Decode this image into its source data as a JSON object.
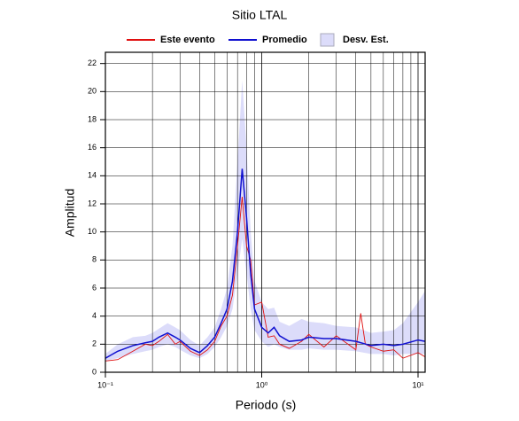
{
  "chart_data": {
    "type": "line",
    "title": "Sitio LTAL",
    "xlabel": "Periodo (s)",
    "ylabel": "Amplitud",
    "xscale": "log",
    "grid": true,
    "legend": "top",
    "xlim": [
      0.1,
      11.1
    ],
    "ylim": [
      0,
      22.8
    ],
    "xticks": [
      {
        "value": 0.1,
        "label": "10⁻¹"
      },
      {
        "value": 1,
        "label": "10⁰"
      },
      {
        "value": 10,
        "label": "10¹"
      }
    ],
    "xminorticks": [
      0.2,
      0.3,
      0.4,
      0.5,
      0.6,
      0.7,
      0.8,
      0.9,
      2,
      3,
      4,
      5,
      6,
      7,
      8,
      9
    ],
    "yticks": [
      0,
      2,
      4,
      6,
      8,
      10,
      12,
      14,
      16,
      18,
      20,
      22
    ],
    "x": [
      0.1,
      0.12,
      0.15,
      0.18,
      0.2,
      0.22,
      0.25,
      0.28,
      0.3,
      0.35,
      0.4,
      0.45,
      0.5,
      0.55,
      0.6,
      0.65,
      0.7,
      0.75,
      0.8,
      0.85,
      0.9,
      1.0,
      1.1,
      1.2,
      1.3,
      1.5,
      1.8,
      2.0,
      2.5,
      3.0,
      4.0,
      5,
      6,
      7,
      8,
      10,
      11.1
    ],
    "band": {
      "name": "Desv. Est.",
      "color": "#dcdcfa",
      "lower": [
        0.8,
        1.0,
        1.3,
        1.5,
        1.6,
        1.8,
        2.0,
        1.8,
        1.6,
        1.2,
        1.0,
        1.3,
        1.8,
        2.5,
        3.3,
        4.5,
        7,
        9.5,
        7,
        4.5,
        3.0,
        2.2,
        1.8,
        2.0,
        1.8,
        1.6,
        1.6,
        1.7,
        1.6,
        1.6,
        1.5,
        1.3,
        1.3,
        1.2,
        1.3,
        1.3,
        1.3
      ],
      "upper": [
        1.3,
        2.0,
        2.5,
        2.6,
        2.8,
        3.1,
        3.5,
        3.2,
        3.0,
        2.3,
        1.9,
        2.5,
        3.2,
        4.5,
        6.0,
        9,
        15,
        20.8,
        16,
        10,
        6.5,
        5,
        4.5,
        4.6,
        3.6,
        3.3,
        3.8,
        3.6,
        3.5,
        3.3,
        3.2,
        2.8,
        2.9,
        3.0,
        3.5,
        5.0,
        5.8
      ]
    },
    "series": [
      {
        "name": "Este evento",
        "color": "#e01010",
        "x": [
          0.1,
          0.12,
          0.15,
          0.18,
          0.2,
          0.22,
          0.25,
          0.28,
          0.3,
          0.35,
          0.4,
          0.45,
          0.5,
          0.55,
          0.6,
          0.65,
          0.7,
          0.75,
          0.8,
          0.85,
          0.9,
          1.0,
          1.1,
          1.2,
          1.3,
          1.5,
          1.8,
          2.0,
          2.5,
          3.0,
          4.0,
          4.3,
          4.6,
          5,
          6,
          7,
          8,
          10,
          11.1
        ],
        "values": [
          0.8,
          0.9,
          1.5,
          2.0,
          1.9,
          2.2,
          2.7,
          2.0,
          2.2,
          1.5,
          1.2,
          1.6,
          2.2,
          3.3,
          4.0,
          5.5,
          9,
          12.5,
          9,
          8,
          4.8,
          5.0,
          2.5,
          2.6,
          2.0,
          1.7,
          2.2,
          2.7,
          1.8,
          2.6,
          1.6,
          4.2,
          2.0,
          1.8,
          1.5,
          1.6,
          1.0,
          1.4,
          1.1
        ]
      },
      {
        "name": "Promedio",
        "color": "#1010d0",
        "values": [
          1.0,
          1.5,
          1.9,
          2.1,
          2.2,
          2.5,
          2.8,
          2.5,
          2.3,
          1.7,
          1.4,
          1.9,
          2.5,
          3.5,
          4.5,
          6.5,
          10,
          14.5,
          11,
          7,
          4.5,
          3.2,
          2.8,
          3.2,
          2.6,
          2.2,
          2.3,
          2.5,
          2.4,
          2.4,
          2.2,
          1.9,
          2.0,
          1.9,
          2.0,
          2.3,
          2.2
        ]
      }
    ]
  }
}
